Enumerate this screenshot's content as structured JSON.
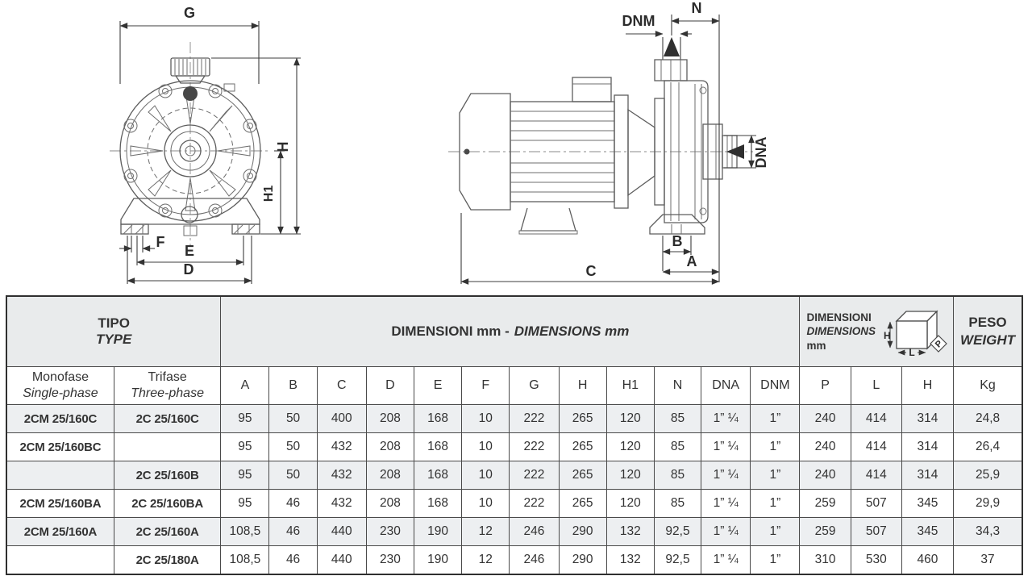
{
  "drawings": {
    "front": {
      "g": "G",
      "h": "H",
      "h1": "H1",
      "f": "F",
      "e": "E",
      "d": "D"
    },
    "side": {
      "dnm": "DNM",
      "n": "N",
      "dna": "DNA",
      "b": "B",
      "a": "A",
      "c": "C"
    }
  },
  "table": {
    "header": {
      "tipo": "TIPO",
      "type": "TYPE",
      "dims_it": "DIMENSIONI mm -",
      "dims_en": "DIMENSIONS mm",
      "pack_it": "DIMENSIONI",
      "pack_en": "DIMENSIONS",
      "pack_unit": "mm",
      "pack_box": {
        "h": "H",
        "l": "L",
        "p": "P"
      },
      "peso": "PESO",
      "weight": "WEIGHT",
      "monofase": "Monofase",
      "single": "Single-phase",
      "trifase": "Trifase",
      "three": "Three-phase",
      "columns": [
        "A",
        "B",
        "C",
        "D",
        "E",
        "F",
        "G",
        "H",
        "H1",
        "N",
        "DNA",
        "DNM",
        "P",
        "L",
        "H",
        "Kg"
      ]
    },
    "rows": [
      [
        "2CM 25/160C",
        "2C 25/160C",
        "95",
        "50",
        "400",
        "208",
        "168",
        "10",
        "222",
        "265",
        "120",
        "85",
        "1” ¼",
        "1”",
        "240",
        "414",
        "314",
        "24,8"
      ],
      [
        "2CM 25/160BC",
        "",
        "95",
        "50",
        "432",
        "208",
        "168",
        "10",
        "222",
        "265",
        "120",
        "85",
        "1” ¼",
        "1”",
        "240",
        "414",
        "314",
        "26,4"
      ],
      [
        "",
        "2C 25/160B",
        "95",
        "50",
        "432",
        "208",
        "168",
        "10",
        "222",
        "265",
        "120",
        "85",
        "1” ¼",
        "1”",
        "240",
        "414",
        "314",
        "25,9"
      ],
      [
        "2CM 25/160BA",
        "2C 25/160BA",
        "95",
        "46",
        "432",
        "208",
        "168",
        "10",
        "222",
        "265",
        "120",
        "85",
        "1” ¼",
        "1”",
        "259",
        "507",
        "345",
        "29,9"
      ],
      [
        "2CM 25/160A",
        "2C 25/160A",
        "108,5",
        "46",
        "440",
        "230",
        "190",
        "12",
        "246",
        "290",
        "132",
        "92,5",
        "1” ¼",
        "1”",
        "259",
        "507",
        "345",
        "34,3"
      ],
      [
        "",
        "2C 25/180A",
        "108,5",
        "46",
        "440",
        "230",
        "190",
        "12",
        "246",
        "290",
        "132",
        "92,5",
        "1” ¼",
        "1”",
        "310",
        "530",
        "460",
        "37"
      ]
    ]
  },
  "colors": {
    "header_bg": "#e9ebec",
    "row_alt_bg": "#edeff1",
    "border": "#4a4a4a",
    "outer_border": "#2f2f2f",
    "drawing_line": "#5d5d5d",
    "dimension_line": "#3c3c3c",
    "text": "#333333"
  }
}
